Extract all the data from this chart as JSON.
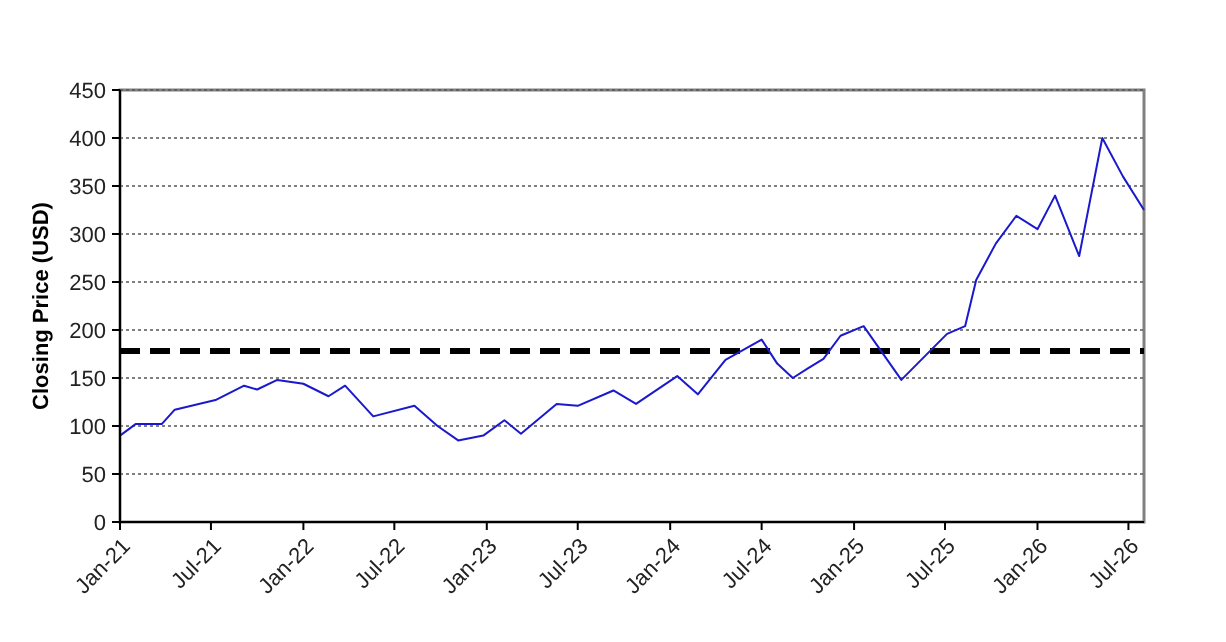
{
  "chart_data": {
    "type": "line",
    "ylabel": "Closing Price (USD)",
    "x": [
      "2021-01-01",
      "2021-02-01",
      "2021-03-25",
      "2021-04-20",
      "2021-07-10",
      "2021-09-05",
      "2021-10-01",
      "2021-11-10",
      "2022-01-01",
      "2022-02-20",
      "2022-03-25",
      "2022-05-20",
      "2022-08-10",
      "2022-09-25",
      "2022-11-05",
      "2022-12-25",
      "2023-02-05",
      "2023-03-10",
      "2023-05-20",
      "2023-07-01",
      "2023-09-10",
      "2023-10-25",
      "2024-01-15",
      "2024-02-25",
      "2024-04-20",
      "2024-07-01",
      "2024-08-01",
      "2024-09-01",
      "2024-10-01",
      "2024-11-01",
      "2024-12-05",
      "2025-01-20",
      "2025-04-05",
      "2025-07-05",
      "2025-08-10",
      "2025-09-01",
      "2025-10-10",
      "2025-11-20",
      "2026-01-01",
      "2026-02-05",
      "2026-03-25",
      "2026-05-10",
      "2026-06-20",
      "2026-08-01"
    ],
    "series": [
      {
        "color": "#1a1acc",
        "values": [
          90,
          102,
          102,
          117,
          127,
          142,
          138,
          148,
          144,
          131,
          142,
          110,
          121,
          100,
          85,
          90,
          106,
          92,
          123,
          121,
          137,
          123,
          152,
          133,
          169,
          190,
          165,
          150,
          160,
          170,
          194,
          204,
          148,
          196,
          204,
          252,
          290,
          319,
          305,
          340,
          277,
          400,
          360,
          325
        ]
      }
    ],
    "xlim": [
      "2021-01-01",
      "2026-08-01"
    ],
    "xticks": [
      {
        "value": "2021-01-01",
        "label": "Jan-21"
      },
      {
        "value": "2021-07-01",
        "label": "Jul-21"
      },
      {
        "value": "2022-01-01",
        "label": "Jan-22"
      },
      {
        "value": "2022-07-01",
        "label": "Jul-22"
      },
      {
        "value": "2023-01-01",
        "label": "Jan-23"
      },
      {
        "value": "2023-07-01",
        "label": "Jul-23"
      },
      {
        "value": "2024-01-01",
        "label": "Jan-24"
      },
      {
        "value": "2024-07-01",
        "label": "Jul-24"
      },
      {
        "value": "2025-01-01",
        "label": "Jan-25"
      },
      {
        "value": "2025-07-01",
        "label": "Jul-25"
      },
      {
        "value": "2026-01-01",
        "label": "Jan-26"
      },
      {
        "value": "2026-07-01",
        "label": "Jul-26"
      }
    ],
    "ylim": [
      0,
      450
    ],
    "yticks": [
      0,
      50,
      100,
      150,
      200,
      250,
      300,
      350,
      400,
      450
    ],
    "grid": "y",
    "marker": "none",
    "line_style": "solid",
    "ref_lines": [
      {
        "axis": "y",
        "value": 178,
        "color": "#000000",
        "line_style": "dashed"
      }
    ]
  }
}
